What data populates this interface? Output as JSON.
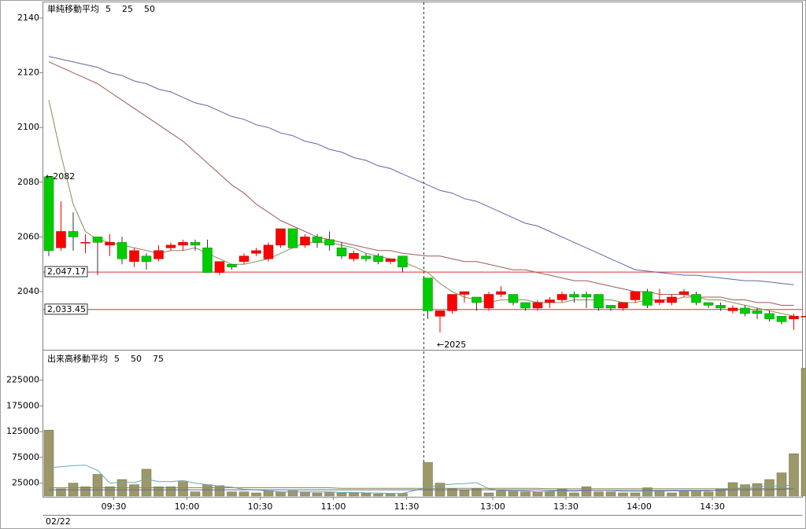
{
  "chart_data": [
    {
      "type": "candlestick",
      "legend_title": "単純移動平均",
      "date_label": "02/22",
      "categories": [
        null,
        null,
        null,
        null,
        null,
        "09:30",
        null,
        null,
        null,
        null,
        null,
        "10:00",
        null,
        null,
        null,
        null,
        null,
        "10:30",
        null,
        null,
        null,
        null,
        null,
        "11:00",
        null,
        null,
        null,
        null,
        null,
        "11:30",
        null,
        null,
        null,
        null,
        null,
        "13:00",
        null,
        null,
        null,
        null,
        null,
        "13:30",
        null,
        null,
        null,
        null,
        null,
        "14:00",
        null,
        null,
        null,
        null,
        null,
        "14:30",
        null,
        null,
        null,
        null,
        null,
        null,
        null,
        null
      ],
      "open": [
        2082,
        2056,
        2062,
        2058,
        2060,
        2057,
        2058,
        2051,
        2053,
        2052,
        2056,
        2057,
        2058,
        2056,
        2047,
        2050,
        2051,
        2054,
        2052,
        2057,
        2063,
        2057,
        2060,
        2059,
        2056,
        2052,
        2053,
        2053,
        2051,
        2053,
        2045,
        2031,
        2033,
        2039,
        2038,
        2034,
        2039,
        2039,
        2036,
        2034,
        2036,
        2037,
        2039,
        2039,
        2039,
        2035,
        2034,
        2037,
        2040,
        2036,
        2036,
        2039,
        2039,
        2036,
        2035,
        2033,
        2034,
        2033,
        2032,
        2031,
        2030,
        2031
      ],
      "high": [
        2082,
        2073,
        2069,
        2061,
        2060,
        2061,
        2060,
        2056,
        2054,
        2057,
        2058,
        2059,
        2059,
        2059,
        2051,
        2050,
        2054,
        2056,
        2058,
        2063,
        2063,
        2061,
        2061,
        2062,
        2058,
        2055,
        2054,
        2054,
        2052,
        2053,
        2045,
        2033,
        2039,
        2040,
        2038,
        2040,
        2042,
        2039,
        2036,
        2037,
        2038,
        2040,
        2040,
        2040,
        2039,
        2035,
        2036,
        2040,
        2041,
        2041,
        2039,
        2041,
        2040,
        2036,
        2036,
        2035,
        2035,
        2034,
        2033,
        2031,
        2032,
        2031
      ],
      "low": [
        2053,
        2055,
        2055,
        2054,
        2046,
        2053,
        2050,
        2049,
        2048,
        2051,
        2055,
        2055,
        2055,
        2047,
        2046,
        2048,
        2050,
        2053,
        2051,
        2056,
        2056,
        2056,
        2056,
        2055,
        2052,
        2051,
        2051,
        2050,
        2050,
        2047,
        2030,
        2025,
        2032,
        2036,
        2033,
        2033,
        2038,
        2035,
        2033,
        2033,
        2034,
        2036,
        2036,
        2034,
        2033,
        2033,
        2033,
        2036,
        2034,
        2035,
        2035,
        2038,
        2035,
        2034,
        2033,
        2032,
        2031,
        2030,
        2029,
        2028,
        2026,
        2031
      ],
      "close": [
        2055,
        2062,
        2060,
        2058,
        2058,
        2058,
        2052,
        2055,
        2051,
        2055,
        2057,
        2058,
        2057,
        2047,
        2051,
        2049,
        2053,
        2055,
        2057,
        2063,
        2056,
        2060,
        2058,
        2057,
        2053,
        2054,
        2052,
        2051,
        2052,
        2049,
        2033,
        2033,
        2039,
        2040,
        2036,
        2039,
        2040,
        2036,
        2034,
        2036,
        2037,
        2039,
        2038,
        2038,
        2034,
        2034,
        2036,
        2040,
        2035,
        2037,
        2038,
        2040,
        2036,
        2035,
        2034,
        2034,
        2032,
        2032,
        2030,
        2029,
        2031,
        2031
      ],
      "up_color": "#ff0000",
      "down_color": "#00cc00",
      "ylim": [
        2019,
        2145
      ],
      "yticks": [
        2040,
        2060,
        2080,
        2100,
        2120,
        2140
      ],
      "series": [
        {
          "name": "5",
          "color": "#8c8c5a",
          "values": [
            2110,
            2090,
            2072,
            2062,
            2059,
            2058,
            2057,
            2056,
            2055,
            2054,
            2055,
            2055,
            2056,
            2054,
            2052,
            2050,
            2050,
            2051,
            2052,
            2054,
            2056,
            2058,
            2058,
            2058,
            2057,
            2056,
            2054,
            2053,
            2052,
            2051,
            2047,
            2043,
            2040,
            2038,
            2037,
            2036,
            2037,
            2037,
            2037,
            2036,
            2036,
            2036,
            2037,
            2037,
            2037,
            2037,
            2036,
            2036,
            2037,
            2037,
            2037,
            2038,
            2038,
            2037,
            2037,
            2036,
            2035,
            2034,
            2033,
            2032,
            2031,
            null
          ]
        },
        {
          "name": "25",
          "color": "#a05a5a",
          "values": [
            2124,
            2122,
            2120,
            2118,
            2116,
            2113,
            2110,
            2107,
            2104,
            2101,
            2098,
            2095,
            2091,
            2087,
            2083,
            2079,
            2076,
            2072,
            2069,
            2066,
            2064,
            2062,
            2060,
            2059,
            2058,
            2057,
            2056,
            2055,
            2055,
            2054,
            2053,
            2053,
            2052,
            2051,
            2051,
            2050,
            2049,
            2048,
            2048,
            2047,
            2046,
            2045,
            2044,
            2044,
            2043,
            2042,
            2041,
            2040,
            2040,
            2039,
            2039,
            2039,
            2038,
            2038,
            2038,
            2037,
            2037,
            2036,
            2036,
            2035,
            2035,
            null
          ]
        },
        {
          "name": "50",
          "color": "#6464a8",
          "values": [
            2126,
            2125,
            2124,
            2123,
            2122,
            2120,
            2119,
            2117,
            2116,
            2114,
            2113,
            2111,
            2109,
            2108,
            2106,
            2104,
            2103,
            2101,
            2100,
            2098,
            2097,
            2095,
            2094,
            2092,
            2091,
            2089,
            2088,
            2086,
            2085,
            2083,
            2079,
            2077,
            2076,
            2074,
            2073,
            2071,
            2069,
            2067,
            2065,
            2064,
            2062,
            2060,
            2058,
            2056,
            2054,
            2052,
            2050,
            2048,
            2047.5,
            2047,
            2046.5,
            2046,
            2046,
            2045.5,
            2045,
            2044.5,
            2044,
            2044,
            2043.5,
            2043,
            2042.5,
            null
          ]
        }
      ],
      "hlines": [
        {
          "value": 2047.17,
          "label": "2,047.17"
        },
        {
          "value": 2033.45,
          "label": "2,033.45"
        }
      ],
      "hline_color": "#e03030",
      "annotations": [
        {
          "text": "←2082",
          "index": 0,
          "value": 2082
        },
        {
          "text": "←2025",
          "index": 31,
          "value": 2025
        }
      ]
    },
    {
      "type": "bar",
      "legend_title": "出来高移動平均",
      "color": "#9c9868",
      "values": [
        128000,
        14000,
        25000,
        18000,
        42000,
        18000,
        32000,
        22000,
        52000,
        18000,
        18000,
        28000,
        8000,
        22000,
        20000,
        8000,
        8000,
        6000,
        10000,
        8000,
        10000,
        8000,
        6000,
        8000,
        6000,
        6000,
        5000,
        4000,
        4000,
        5000,
        65000,
        25000,
        14000,
        12000,
        14000,
        6000,
        10000,
        10000,
        8000,
        8000,
        8000,
        14000,
        6000,
        18000,
        8000,
        8000,
        6000,
        6000,
        16000,
        10000,
        6000,
        10000,
        10000,
        8000,
        14000,
        26000,
        22000,
        24000,
        32000,
        45000,
        82000,
        248000
      ],
      "ylim": [
        0,
        280000
      ],
      "yticks": [
        25000,
        75000,
        125000,
        175000,
        225000
      ],
      "series": [
        {
          "name": "5",
          "color": "#6aaab0",
          "values": [
            55000,
            57000,
            59000,
            60000,
            50000,
            25000,
            27000,
            26000,
            33000,
            28000,
            28000,
            30000,
            25000,
            22000,
            19000,
            17000,
            13000,
            12000,
            10000,
            8000,
            8000,
            8000,
            8000,
            8000,
            7000,
            7000,
            6000,
            6000,
            5000,
            5000,
            17000,
            21000,
            23000,
            24000,
            26000,
            14000,
            11000,
            10000,
            10000,
            8000,
            9000,
            10000,
            9000,
            11000,
            11000,
            11000,
            9000,
            9000,
            9000,
            9000,
            10000,
            10000,
            10000,
            10000,
            12000,
            14000,
            16000,
            18000,
            19000,
            20000,
            21000,
            null
          ]
        },
        {
          "name": "50",
          "color": "#6464a8",
          "values": [
            12000,
            12000,
            12000,
            12000,
            12000,
            12000,
            12000,
            12000,
            12000,
            12000,
            12000,
            12000,
            12000,
            12000,
            12000,
            12000,
            12000,
            12000,
            12000,
            12000,
            12000,
            12000,
            12000,
            12000,
            12000,
            12000,
            12000,
            12000,
            12000,
            12000,
            12000,
            12000,
            12000,
            12000,
            12000,
            12000,
            12000,
            12000,
            12000,
            12000,
            11000,
            11000,
            11000,
            11000,
            11000,
            11000,
            11000,
            11000,
            11000,
            11000,
            11000,
            11000,
            11000,
            11000,
            11000,
            12000,
            12000,
            12000,
            12000,
            13000,
            14000,
            null
          ]
        },
        {
          "name": "75",
          "color": "#8c8c5a",
          "values": [
            16000,
            16000,
            16000,
            16000,
            16000,
            16000,
            16000,
            16000,
            16000,
            16000,
            16000,
            16000,
            16000,
            16000,
            16000,
            16000,
            16000,
            16000,
            16000,
            16000,
            16000,
            16000,
            16000,
            16000,
            15000,
            15000,
            15000,
            15000,
            15000,
            15000,
            15000,
            15000,
            15000,
            15000,
            15000,
            15000,
            15000,
            15000,
            15000,
            15000,
            14000,
            14000,
            14000,
            14000,
            14000,
            14000,
            14000,
            14000,
            14000,
            14000,
            14000,
            14000,
            14000,
            14000,
            14000,
            14000,
            14000,
            14000,
            15000,
            15000,
            15000,
            null
          ]
        }
      ]
    }
  ]
}
